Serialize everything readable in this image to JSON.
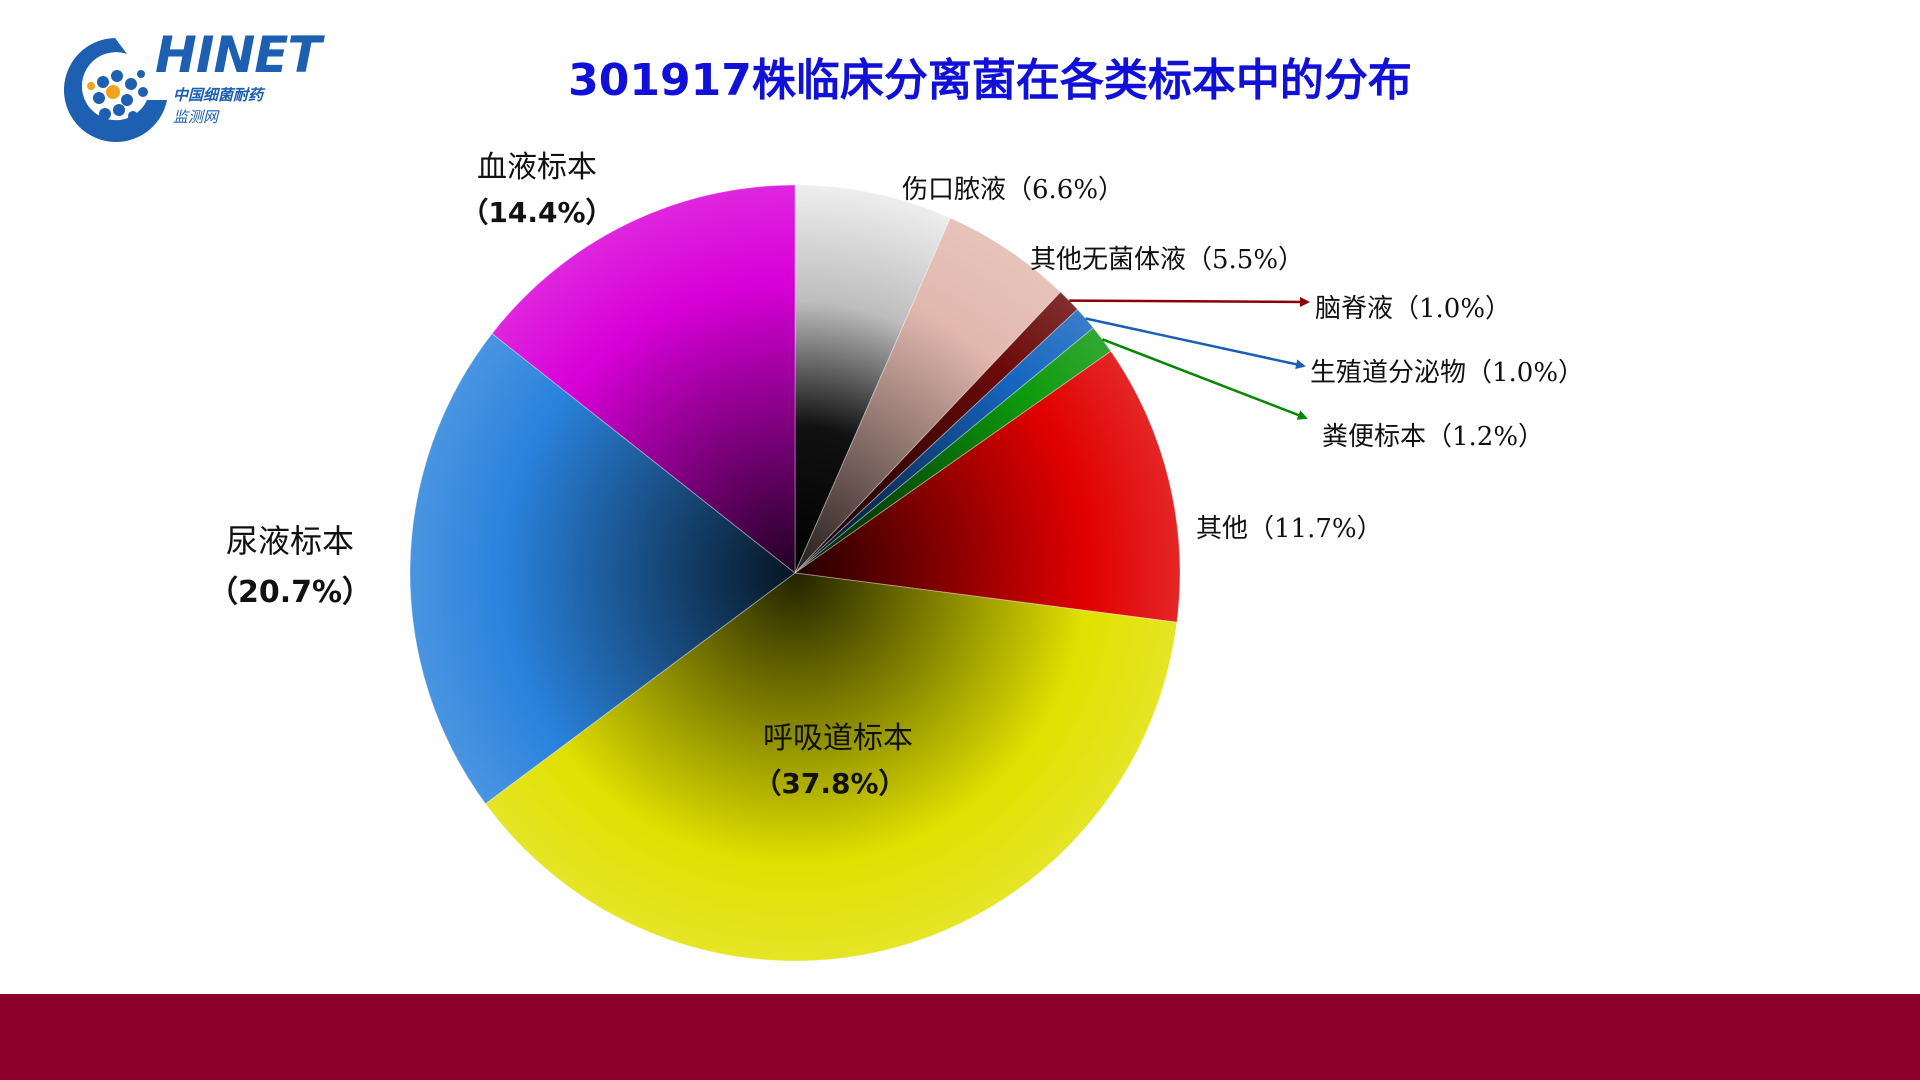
{
  "logo": {
    "wordmark": "HINET",
    "line1": "中国细菌耐药",
    "line2": "监测网",
    "colors": {
      "primary": "#1d5fb0",
      "dot_accent": "#f2a31b"
    }
  },
  "chart_data": {
    "type": "pie",
    "title": "301917株临床分离菌在各类标本中的分布",
    "start_angle_deg": 0,
    "direction": "clockwise",
    "slices": [
      {
        "name": "伤口脓液",
        "value": 6.6,
        "label": "伤口脓液（6.6%）",
        "color": "#cfcfcf"
      },
      {
        "name": "其他无菌体液",
        "value": 5.5,
        "label": "其他无菌体液（5.5%）",
        "color": "#e2b8ae"
      },
      {
        "name": "脑脊液",
        "value": 1.0,
        "label": "脑脊液（1.0%）",
        "color": "#6b0a0a"
      },
      {
        "name": "生殖道分泌物",
        "value": 1.0,
        "label": "生殖道分泌物（1.0%）",
        "color": "#1666c0"
      },
      {
        "name": "粪便标本",
        "value": 1.2,
        "label": "粪便标本（1.2%）",
        "color": "#0e9a0e"
      },
      {
        "name": "其他",
        "value": 11.7,
        "label": "其他（11.7%）",
        "color": "#e00000"
      },
      {
        "name": "呼吸道标本",
        "value": 37.8,
        "label_name": "呼吸道标本",
        "label_pct": "（37.8%）",
        "color": "#e0e000"
      },
      {
        "name": "尿液标本",
        "value": 20.7,
        "label_name": "尿液标本",
        "label_pct": "（20.7%）",
        "color": "#2a82dc"
      },
      {
        "name": "血液标本",
        "value": 14.4,
        "label_name": "血液标本",
        "label_pct": "（14.4%）",
        "color": "#d800d8"
      }
    ],
    "leader_line_colors": {
      "脑脊液": "#8b0000",
      "生殖道分泌物": "#1a5fb4",
      "粪便标本": "#008800"
    }
  },
  "footer": {
    "band_color": "#8e002c"
  }
}
